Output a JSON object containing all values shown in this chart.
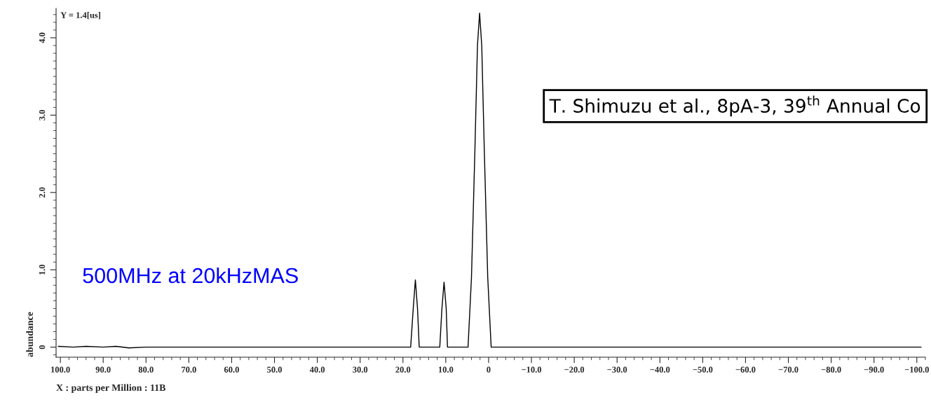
{
  "chart_data": {
    "type": "line",
    "xlabel": "X : parts per Million : 11B",
    "ylabel": "abundance",
    "annotations": [
      "Y = 1.4[us]",
      "500MHz at 20kHzMAS",
      "T. Shimuzu et al., 8pA-3, 39$^{th}$ Annual Co"
    ],
    "series": [
      {
        "color": "#000000",
        "x": [
          100.5,
          97,
          94,
          90,
          87,
          84,
          80,
          60,
          40,
          20,
          18.2,
          17.6,
          17.1,
          16.6,
          16.2,
          11.4,
          10.9,
          10.4,
          9.9,
          9.6,
          4.8,
          4.0,
          3.2,
          2.6,
          2.1,
          1.6,
          1.0,
          0.2,
          -0.6,
          -20,
          -60,
          -101
        ],
        "values": [
          0.01,
          0.0,
          0.01,
          0.0,
          0.01,
          -0.01,
          0.0,
          0.0,
          0.0,
          0.0,
          0.0,
          0.5,
          0.87,
          0.5,
          0.0,
          0.0,
          0.5,
          0.84,
          0.5,
          0.0,
          0.0,
          0.9,
          2.54,
          3.9,
          4.32,
          3.9,
          2.54,
          0.9,
          0.0,
          0.0,
          0.0,
          0.0
        ]
      }
    ],
    "xlim": [
      101,
      -102
    ],
    "ylim": [
      -0.13,
      4.38
    ],
    "xticks": [
      {
        "value": 100,
        "label": "100.0"
      },
      {
        "value": 90,
        "label": "90.0"
      },
      {
        "value": 80,
        "label": "80.0"
      },
      {
        "value": 70,
        "label": "70.0"
      },
      {
        "value": 60,
        "label": "60.0"
      },
      {
        "value": 50,
        "label": "50.0"
      },
      {
        "value": 40,
        "label": "40.0"
      },
      {
        "value": 30,
        "label": "30.0"
      },
      {
        "value": 20,
        "label": "20.0"
      },
      {
        "value": 10,
        "label": "10.0"
      },
      0,
      {
        "value": -10,
        "label": "−10.0"
      },
      {
        "value": -20,
        "label": "−20.0"
      },
      {
        "value": -30,
        "label": "−30.0"
      },
      {
        "value": -40,
        "label": "−40.0"
      },
      {
        "value": -50,
        "label": "−50.0"
      },
      {
        "value": -60,
        "label": "−60.0"
      },
      {
        "value": -70,
        "label": "−70.0"
      },
      {
        "value": -80,
        "label": "−80.0"
      },
      {
        "value": -90,
        "label": "−90.0"
      },
      {
        "value": -100,
        "label": "−100.0"
      }
    ],
    "yticks": [
      0,
      {
        "value": 1,
        "label": "1.0"
      },
      {
        "value": 2,
        "label": "2.0"
      },
      {
        "value": 3,
        "label": "3.0"
      },
      {
        "value": 4,
        "label": "4.0"
      }
    ],
    "grid": false,
    "marker": "none",
    "line_style": "solid"
  }
}
